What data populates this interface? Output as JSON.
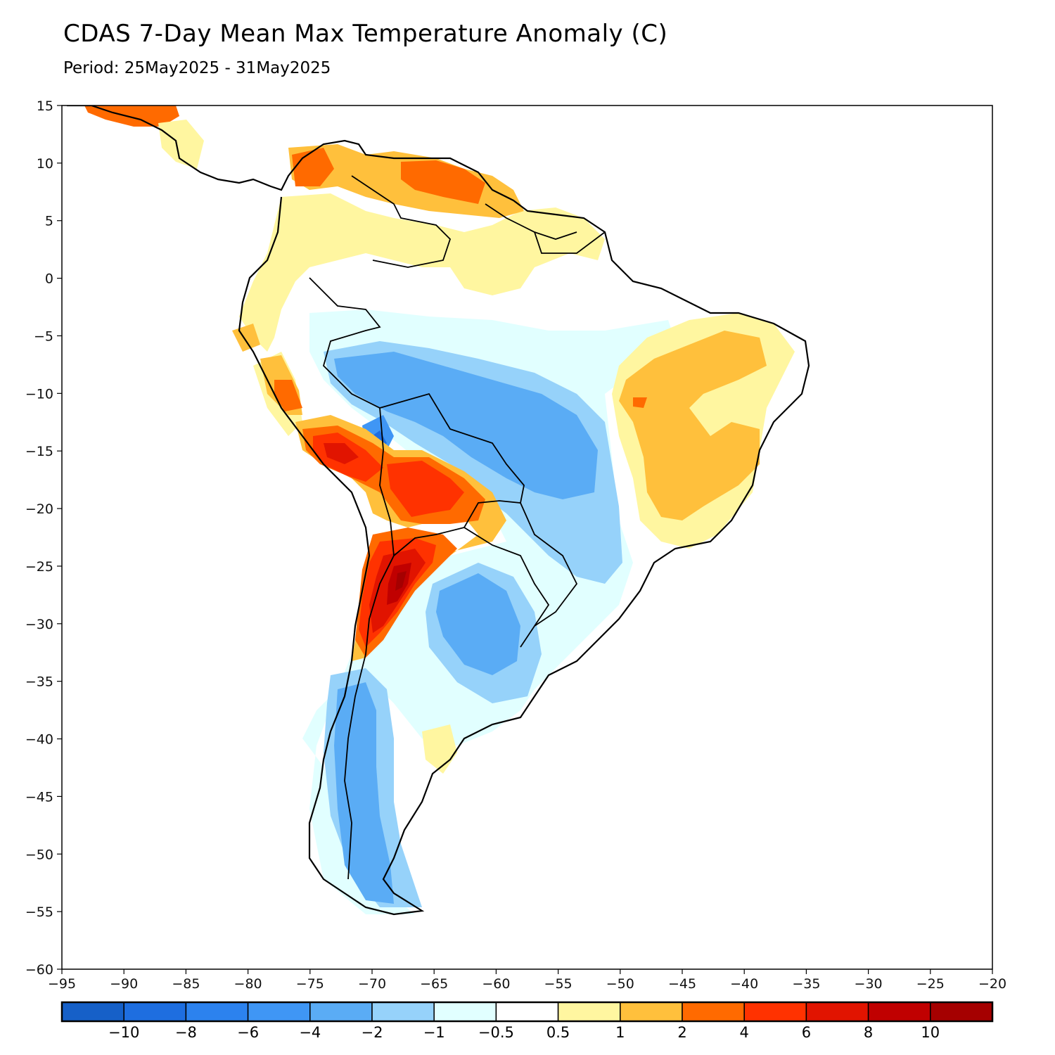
{
  "title": "CDAS 7-Day Mean Max Temperature Anomaly (C)",
  "subtitle": "Period: 25May2025 - 31May2025",
  "axes": {
    "x_ticks": [
      "-95",
      "-90",
      "-85",
      "-80",
      "-75",
      "-70",
      "-65",
      "-60",
      "-55",
      "-50",
      "-45",
      "-40",
      "-35",
      "-30",
      "-25",
      "-20"
    ],
    "y_ticks": [
      "15",
      "10",
      "5",
      "0",
      "-5",
      "-10",
      "-15",
      "-20",
      "-25",
      "-30",
      "-35",
      "-40",
      "-45",
      "-50",
      "-55",
      "-60"
    ],
    "lon_range": [
      -95,
      -20
    ],
    "lat_range": [
      -60,
      15
    ]
  },
  "colorbar": {
    "colors": [
      "#1660c8",
      "#1e6ee0",
      "#2c82ee",
      "#3f96f5",
      "#5aacf5",
      "#96d2fa",
      "#e1ffff",
      "#ffffff",
      "#fff6a0",
      "#ffc03c",
      "#ff6a00",
      "#ff3200",
      "#e11400",
      "#c00000",
      "#a50000"
    ],
    "labels": [
      "-10",
      "-8",
      "-6",
      "-4",
      "-2",
      "-1",
      "-0.5",
      "0.5",
      "1",
      "2",
      "4",
      "6",
      "8",
      "10"
    ]
  }
}
